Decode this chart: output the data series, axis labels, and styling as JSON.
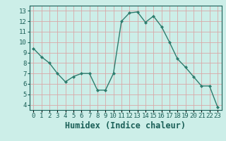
{
  "x": [
    0,
    1,
    2,
    3,
    4,
    5,
    6,
    7,
    8,
    9,
    10,
    11,
    12,
    13,
    14,
    15,
    16,
    17,
    18,
    19,
    20,
    21,
    22,
    23
  ],
  "y": [
    9.4,
    8.6,
    8.0,
    7.0,
    6.2,
    6.7,
    7.0,
    7.0,
    5.4,
    5.4,
    7.0,
    12.0,
    12.8,
    12.9,
    11.9,
    12.5,
    11.5,
    10.0,
    8.4,
    7.6,
    6.7,
    5.8,
    5.8,
    3.8
  ],
  "line_color": "#2d7d6e",
  "marker": "D",
  "marker_size": 2.0,
  "bg_color": "#cceee8",
  "grid_color": "#d9a8a8",
  "xlabel": "Humidex (Indice chaleur)",
  "ylim": [
    3.5,
    13.5
  ],
  "xlim": [
    -0.5,
    23.5
  ],
  "yticks": [
    4,
    5,
    6,
    7,
    8,
    9,
    10,
    11,
    12,
    13
  ],
  "xtick_labels": [
    "0",
    "1",
    "2",
    "3",
    "4",
    "5",
    "6",
    "7",
    "8",
    "9",
    "10",
    "11",
    "12",
    "13",
    "14",
    "15",
    "16",
    "17",
    "18",
    "19",
    "20",
    "21",
    "22",
    "23"
  ],
  "tick_fontsize": 6.5,
  "xlabel_fontsize": 8.5,
  "label_color": "#1a5f57"
}
